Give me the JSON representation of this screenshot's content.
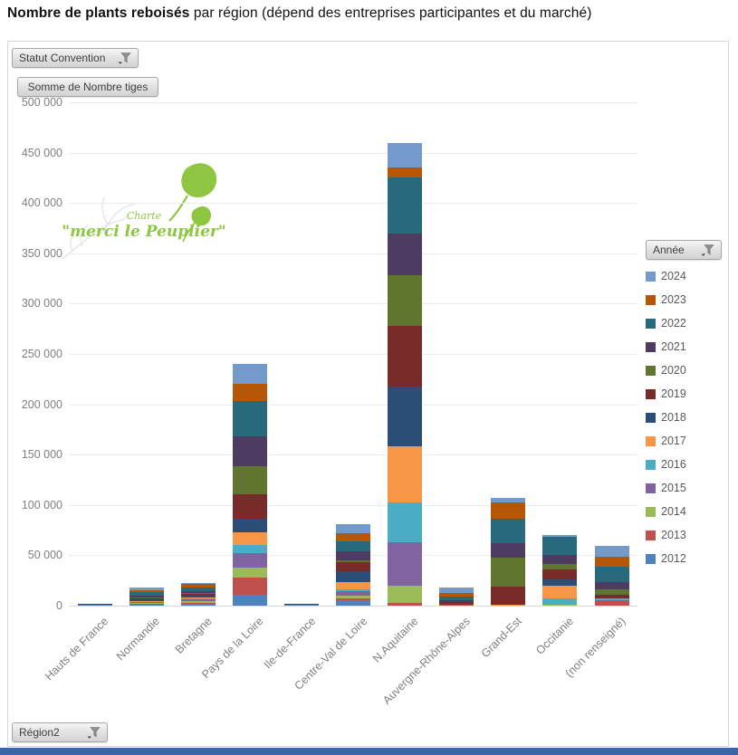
{
  "title": {
    "bold": "Nombre de plants reboisés",
    "rest": " par région (dépend des entreprises participantes et du marché)"
  },
  "filters": {
    "statut_convention_label": "Statut Convention",
    "value_field_label": "Somme de Nombre tiges",
    "legend_field_label": "Année",
    "axis_field_label": "Région2"
  },
  "logo": {
    "line1": "Charte",
    "line2": "\"merci le Peuplier\"",
    "color": "#8fc641"
  },
  "chart_data": {
    "type": "bar",
    "stacked": true,
    "title": "Nombre de plants reboisés par région",
    "xlabel": "Région2",
    "ylabel": "Somme de Nombre tiges",
    "ylim": [
      0,
      500000
    ],
    "ytick_step": 50000,
    "ytick_labels": [
      "0",
      "50 000",
      "100 000",
      "150 000",
      "200 000",
      "250 000",
      "300 000",
      "350 000",
      "400 000",
      "450 000",
      "500 000"
    ],
    "grid": true,
    "legend_title": "Année",
    "legend_position": "right",
    "legend_order_note": "legend shows newest year first (2024 top); stacking is 2012 at bottom",
    "categories": [
      "Hauts de France",
      "Normandie",
      "Bretagne",
      "Pays de la Loire",
      "Ile-de-France",
      "Centre-Val de Loire",
      "N.Aquitaine",
      "Auvergne-Rhône-Alpes",
      "Grand-Est",
      "Occitanie",
      "(non renseigné)"
    ],
    "series": [
      {
        "name": "2012",
        "color": "#4F81BD",
        "values": [
          1000,
          1000,
          1500,
          11000,
          500,
          5000,
          0,
          0,
          0,
          0,
          0
        ]
      },
      {
        "name": "2013",
        "color": "#C0504D",
        "values": [
          0,
          1000,
          1500,
          17000,
          0,
          2000,
          3000,
          1000,
          0,
          0,
          5000
        ]
      },
      {
        "name": "2014",
        "color": "#9BBB59",
        "values": [
          0,
          1000,
          1500,
          10000,
          0,
          3000,
          17000,
          0,
          0,
          1000,
          0
        ]
      },
      {
        "name": "2015",
        "color": "#8064A2",
        "values": [
          0,
          500,
          2000,
          14000,
          0,
          4000,
          43000,
          0,
          0,
          0,
          0
        ]
      },
      {
        "name": "2016",
        "color": "#4BACC6",
        "values": [
          0,
          500,
          500,
          8000,
          0,
          2000,
          40000,
          0,
          0,
          6000,
          2000
        ]
      },
      {
        "name": "2017",
        "color": "#F79646",
        "values": [
          0,
          500,
          1000,
          13000,
          0,
          7000,
          55000,
          0,
          500,
          13000,
          0
        ]
      },
      {
        "name": "2018",
        "color": "#2C4D75",
        "values": [
          1000,
          1500,
          2000,
          13000,
          1500,
          11000,
          60000,
          1000,
          0,
          6000,
          0
        ]
      },
      {
        "name": "2019",
        "color": "#772C2A",
        "values": [
          0,
          1000,
          1500,
          25000,
          0,
          9000,
          60000,
          1500,
          18000,
          10000,
          4000
        ]
      },
      {
        "name": "2020",
        "color": "#5F7530",
        "values": [
          0,
          1000,
          1000,
          28000,
          0,
          2000,
          50000,
          0,
          29000,
          5000,
          5000
        ]
      },
      {
        "name": "2021",
        "color": "#4D3B62",
        "values": [
          0,
          2000,
          2000,
          29000,
          0,
          9000,
          42000,
          1500,
          15000,
          9000,
          7000
        ]
      },
      {
        "name": "2022",
        "color": "#276A7C",
        "values": [
          0,
          4000,
          3500,
          35000,
          0,
          10000,
          55000,
          4000,
          24000,
          18000,
          16000
        ]
      },
      {
        "name": "2023",
        "color": "#B65708",
        "values": [
          0,
          1500,
          3500,
          17000,
          0,
          8000,
          10000,
          4000,
          16000,
          0,
          10000
        ]
      },
      {
        "name": "2024",
        "color": "#729ACA",
        "values": [
          0,
          2500,
          1500,
          20000,
          0,
          9000,
          25000,
          5000,
          5000,
          2000,
          10000
        ]
      }
    ]
  }
}
